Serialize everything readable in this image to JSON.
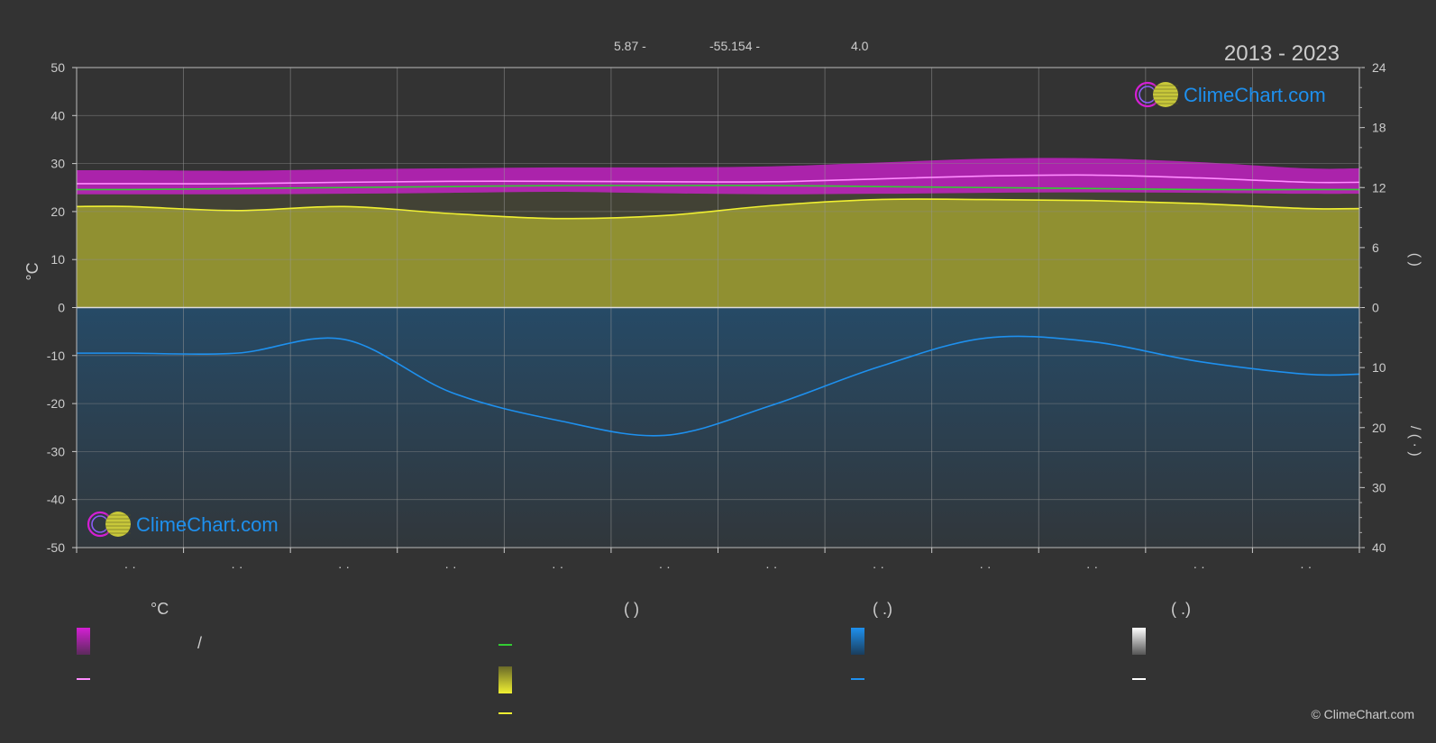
{
  "header": {
    "latitude": "5.87 -",
    "longitude": "-55.154 -",
    "elevation": "4.0",
    "period": "2013 - 2023"
  },
  "logo": {
    "text": "ClimeChart.com"
  },
  "copyright": "© ClimeChart.com",
  "axes": {
    "left_label": "°C",
    "right_label_top": "(    )",
    "right_label_bottom": "/ (  ·  )"
  },
  "legend": {
    "col1": {
      "title": "°C",
      "row1_text": "/"
    },
    "col2": {
      "title": "(          )"
    },
    "col3": {
      "title": "(    .)"
    },
    "col4": {
      "title": "(    .)"
    }
  },
  "colors": {
    "background": "#333333",
    "temperature_band": "#d41fd4",
    "mean_temperature": "#ff8cff",
    "daylight": "#33cc33",
    "sunshine_band": "#a3a32e",
    "sunshine_line": "#f0f032",
    "precipitation_band": "#1a5f95",
    "precipitation_line": "#1e90ee",
    "logo_text": "#1e90ee"
  },
  "chart_data": {
    "type": "area",
    "x": [
      1,
      2,
      3,
      4,
      5,
      6,
      7,
      8,
      9,
      10,
      11,
      12
    ],
    "x_tick_labels": [
      "· ·",
      "· ·",
      "· ·",
      "· ·",
      "· ·",
      "· ·",
      "· ·",
      "· ·",
      "· ·",
      "· ·",
      "· ·",
      "· ·"
    ],
    "left_axis": {
      "label": "°C",
      "range": [
        -50,
        50
      ],
      "ticks": [
        50,
        40,
        30,
        20,
        10,
        0,
        -10,
        -20,
        -30,
        -40,
        -50
      ]
    },
    "right_axis_top": {
      "range": [
        0,
        24
      ],
      "ticks": [
        24,
        18,
        12,
        6,
        0
      ]
    },
    "right_axis_bottom": {
      "range": [
        0,
        40
      ],
      "ticks": [
        0,
        10,
        20,
        30,
        40
      ]
    },
    "grid": true,
    "series": [
      {
        "key": "max_temp_band",
        "axis": "left",
        "values": [
          28.6,
          28.5,
          28.8,
          29.0,
          29.2,
          29.2,
          29.4,
          30.2,
          31.0,
          31.1,
          30.3,
          29.0
        ]
      },
      {
        "key": "min_temp_band",
        "axis": "left",
        "values": [
          23.6,
          23.6,
          23.7,
          23.9,
          24.1,
          23.8,
          23.6,
          23.7,
          23.9,
          24.0,
          23.9,
          23.7
        ]
      },
      {
        "key": "mean_temp",
        "axis": "left",
        "values": [
          25.8,
          25.8,
          26.1,
          26.3,
          26.3,
          26.2,
          26.2,
          26.8,
          27.4,
          27.6,
          27.0,
          26.1
        ]
      },
      {
        "key": "daylight_hours",
        "axis": "right_top",
        "values": [
          11.8,
          11.9,
          12.0,
          12.1,
          12.2,
          12.2,
          12.2,
          12.1,
          12.0,
          11.9,
          11.8,
          11.8
        ]
      },
      {
        "key": "sunshine_hours",
        "axis": "right_top",
        "values": [
          10.1,
          9.7,
          10.1,
          9.4,
          8.9,
          9.2,
          10.2,
          10.8,
          10.8,
          10.7,
          10.4,
          9.9
        ]
      },
      {
        "key": "precipitation_mm",
        "axis": "right_bottom",
        "values": [
          7.6,
          7.6,
          5.3,
          14.1,
          18.8,
          21.3,
          16.3,
          9.9,
          5.1,
          5.7,
          9.0,
          11.1
        ]
      }
    ]
  }
}
